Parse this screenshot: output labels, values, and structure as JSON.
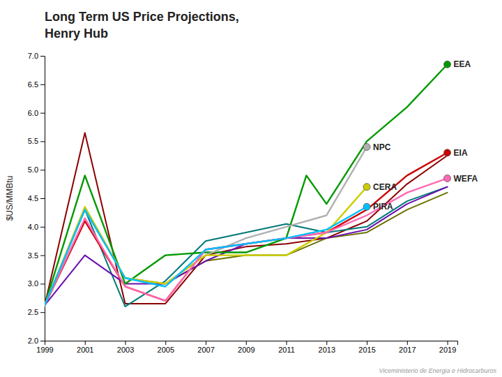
{
  "chart_data": {
    "type": "line",
    "title": "Long Term US Price Projections,",
    "subtitle": "Henry Hub",
    "ylabel": "$US/MMBtu",
    "xlim": [
      1999,
      2019.5
    ],
    "xticks": [
      1999,
      2001,
      2003,
      2005,
      2007,
      2009,
      2011,
      2013,
      2015,
      2017,
      2019
    ],
    "ylim": [
      2.0,
      7.0
    ],
    "yticks": [
      {
        "value": 2.0,
        "label": "2.0"
      },
      2.5,
      {
        "value": 3.0,
        "label": "3.0"
      },
      3.5,
      {
        "value": 4.0,
        "label": "4.0"
      },
      4.5,
      {
        "value": 5.0,
        "label": "5.0"
      },
      5.5,
      {
        "value": 6.0,
        "label": "6.0"
      },
      6.5,
      {
        "value": 7.0,
        "label": "7.0"
      }
    ],
    "grid": false,
    "series": [
      {
        "color": "#8b0000",
        "x": [
          1999,
          2001,
          2003,
          2005,
          2007,
          2009,
          2011,
          2013,
          2015,
          2017,
          2019
        ],
        "values": [
          2.62,
          5.65,
          2.65,
          2.65,
          3.5,
          3.65,
          3.7,
          3.8,
          4.1,
          4.75,
          5.25
        ]
      },
      {
        "color": "#007878",
        "x": [
          1999,
          2001,
          2003,
          2005,
          2007,
          2009,
          2011,
          2013,
          2015,
          2017,
          2019
        ],
        "values": [
          2.62,
          4.3,
          2.6,
          3.05,
          3.75,
          3.9,
          4.05,
          3.9,
          4.0,
          4.45,
          4.7
        ]
      },
      {
        "color": "#6b7200",
        "x": [
          1999,
          2001,
          2003,
          2005,
          2007,
          2009,
          2011,
          2013,
          2015,
          2017,
          2019
        ],
        "values": [
          2.62,
          4.3,
          3.1,
          3.0,
          3.4,
          3.5,
          3.5,
          3.8,
          3.9,
          4.3,
          4.6
        ]
      },
      {
        "color": "#6a0dad",
        "x": [
          1999,
          2001,
          2003,
          2005,
          2007,
          2009,
          2011,
          2013,
          2015,
          2017,
          2019
        ],
        "values": [
          2.62,
          3.5,
          3.0,
          3.0,
          3.4,
          3.7,
          3.8,
          3.8,
          3.95,
          4.4,
          4.7
        ]
      },
      {
        "name": "EEA",
        "color": "#009900",
        "x": [
          1999,
          2001,
          2003,
          2005,
          2007,
          2009,
          2011,
          2012,
          2013,
          2015,
          2017,
          2019
        ],
        "values": [
          2.62,
          4.9,
          3.0,
          3.5,
          3.55,
          3.55,
          3.8,
          4.9,
          4.4,
          5.5,
          6.1,
          6.85
        ]
      },
      {
        "name": "NPC",
        "color": "#b0b0b0",
        "x": [
          1999,
          2001,
          2003,
          2005,
          2007,
          2009,
          2011,
          2013,
          2015
        ],
        "values": [
          2.62,
          4.3,
          3.1,
          3.0,
          3.5,
          3.8,
          4.0,
          4.2,
          5.4
        ]
      },
      {
        "name": "EIA",
        "color": "#cc0000",
        "x": [
          1999,
          2001,
          2003,
          2005,
          2007,
          2009,
          2011,
          2013,
          2015,
          2017,
          2019
        ],
        "values": [
          2.62,
          4.1,
          2.95,
          2.7,
          3.6,
          3.7,
          3.8,
          3.9,
          4.3,
          4.9,
          5.3
        ]
      },
      {
        "name": "CERA",
        "color": "#cccc00",
        "x": [
          1999,
          2001,
          2003,
          2005,
          2007,
          2009,
          2011,
          2013,
          2015
        ],
        "values": [
          2.62,
          4.35,
          3.1,
          3.0,
          3.5,
          3.5,
          3.5,
          3.9,
          4.7
        ]
      },
      {
        "name": "WEFA",
        "color": "#ff69b4",
        "x": [
          1999,
          2001,
          2003,
          2005,
          2007,
          2009,
          2011,
          2013,
          2015,
          2017,
          2019
        ],
        "values": [
          2.62,
          4.15,
          2.95,
          2.7,
          3.6,
          3.7,
          3.8,
          3.9,
          4.2,
          4.6,
          4.85
        ]
      },
      {
        "name": "PIRA",
        "color": "#00bfff",
        "x": [
          1999,
          2001,
          2003,
          2005,
          2007,
          2009,
          2011,
          2013,
          2015
        ],
        "values": [
          2.62,
          4.3,
          3.1,
          2.95,
          3.6,
          3.7,
          3.8,
          3.95,
          4.35
        ]
      }
    ],
    "annotations": [
      "Viceministerio de Energia e Hidrocarburos"
    ]
  }
}
